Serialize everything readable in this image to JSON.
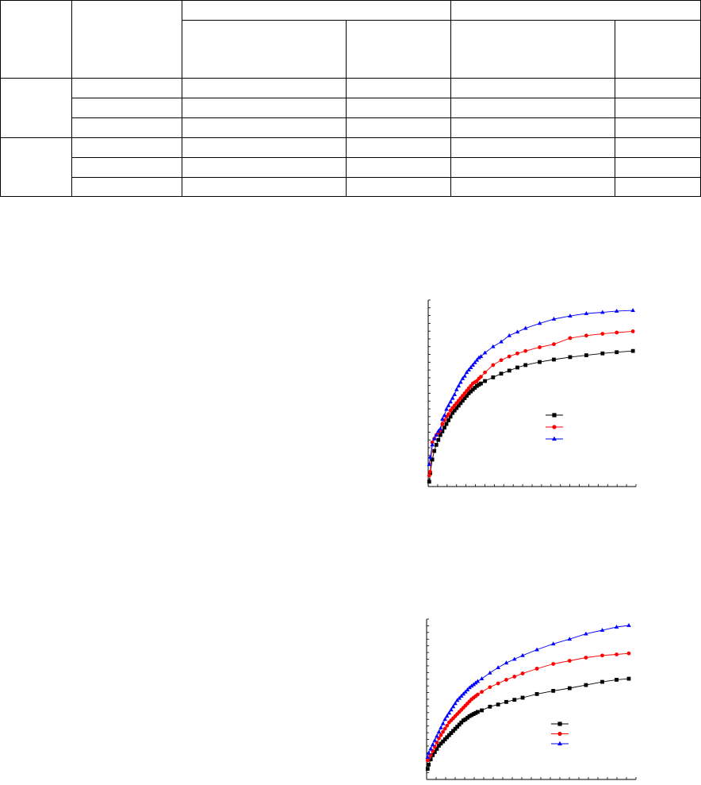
{
  "table": {
    "rows_shown": 8,
    "colors": {
      "border": "#000000",
      "background": "#ffffff"
    }
  },
  "chart_data": [
    {
      "type": "line",
      "title": "",
      "xlabel": "",
      "ylabel": "",
      "x_ticks": 22,
      "y_ticks": 24,
      "grid": false,
      "legend_position": "right-middle",
      "series": [
        {
          "color": "#000000",
          "marker": "square",
          "points": [
            [
              0.1,
              0.4
            ],
            [
              0.2,
              1.1
            ],
            [
              0.4,
              2.2
            ],
            [
              0.6,
              2.9
            ],
            [
              0.8,
              3.4
            ],
            [
              1.0,
              3.8
            ],
            [
              1.2,
              4.2
            ],
            [
              1.4,
              4.5
            ],
            [
              1.6,
              4.8
            ],
            [
              1.8,
              5.1
            ],
            [
              2.0,
              5.4
            ],
            [
              2.2,
              5.7
            ],
            [
              2.4,
              6.0
            ],
            [
              2.6,
              6.2
            ],
            [
              2.8,
              6.4
            ],
            [
              3.0,
              6.6
            ],
            [
              3.2,
              6.8
            ],
            [
              3.4,
              7.0
            ],
            [
              3.6,
              7.2
            ],
            [
              3.8,
              7.4
            ],
            [
              4.0,
              7.6
            ],
            [
              4.2,
              7.75
            ],
            [
              4.4,
              7.9
            ],
            [
              4.6,
              8.05
            ],
            [
              4.8,
              8.2
            ],
            [
              5.0,
              8.3
            ],
            [
              5.2,
              8.4
            ],
            [
              5.6,
              8.6
            ],
            [
              6.4,
              8.9
            ],
            [
              7.2,
              9.2
            ],
            [
              8.0,
              9.45
            ],
            [
              8.8,
              9.7
            ],
            [
              9.6,
              9.9
            ],
            [
              11.0,
              10.15
            ],
            [
              12.4,
              10.35
            ],
            [
              14.0,
              10.55
            ],
            [
              15.6,
              10.7
            ],
            [
              17.2,
              10.85
            ],
            [
              18.6,
              10.95
            ],
            [
              20.2,
              11.05
            ]
          ]
        },
        {
          "color": "#ff0000",
          "marker": "circle",
          "points": [
            [
              0.1,
              0.9
            ],
            [
              0.2,
              1.2
            ],
            [
              0.4,
              3.6
            ],
            [
              0.6,
              3.9
            ],
            [
              0.8,
              4.2
            ],
            [
              1.0,
              4.4
            ],
            [
              1.2,
              4.6
            ],
            [
              1.4,
              5.1
            ],
            [
              1.6,
              5.4
            ],
            [
              1.8,
              5.7
            ],
            [
              2.0,
              5.9
            ],
            [
              2.2,
              6.2
            ],
            [
              2.4,
              6.4
            ],
            [
              2.6,
              6.6
            ],
            [
              2.8,
              6.8
            ],
            [
              3.0,
              7.0
            ],
            [
              3.2,
              7.2
            ],
            [
              3.4,
              7.4
            ],
            [
              3.6,
              7.6
            ],
            [
              3.8,
              7.8
            ],
            [
              4.0,
              8.0
            ],
            [
              4.2,
              8.2
            ],
            [
              4.4,
              8.4
            ],
            [
              4.6,
              8.5
            ],
            [
              4.8,
              8.6
            ],
            [
              5.0,
              8.8
            ],
            [
              5.2,
              8.95
            ],
            [
              5.6,
              9.3
            ],
            [
              6.4,
              9.9
            ],
            [
              7.2,
              10.3
            ],
            [
              8.0,
              10.6
            ],
            [
              8.8,
              10.85
            ],
            [
              9.6,
              11.05
            ],
            [
              11.0,
              11.35
            ],
            [
              12.4,
              11.6
            ],
            [
              14.0,
              12.1
            ],
            [
              15.6,
              12.3
            ],
            [
              17.2,
              12.45
            ],
            [
              18.6,
              12.55
            ],
            [
              20.2,
              12.65
            ]
          ]
        },
        {
          "color": "#0000ff",
          "marker": "triangle",
          "points": [
            [
              0.1,
              1.8
            ],
            [
              0.2,
              2.4
            ],
            [
              0.4,
              3.4
            ],
            [
              0.6,
              3.9
            ],
            [
              0.8,
              4.2
            ],
            [
              1.0,
              4.5
            ],
            [
              1.2,
              4.7
            ],
            [
              1.4,
              5.5
            ],
            [
              1.6,
              5.8
            ],
            [
              1.8,
              6.3
            ],
            [
              2.0,
              6.6
            ],
            [
              2.2,
              6.9
            ],
            [
              2.4,
              7.2
            ],
            [
              2.6,
              7.5
            ],
            [
              2.8,
              7.9
            ],
            [
              3.0,
              8.2
            ],
            [
              3.2,
              8.5
            ],
            [
              3.4,
              8.8
            ],
            [
              3.6,
              9.0
            ],
            [
              3.8,
              9.3
            ],
            [
              4.0,
              9.5
            ],
            [
              4.2,
              9.7
            ],
            [
              4.4,
              9.9
            ],
            [
              4.6,
              10.1
            ],
            [
              4.8,
              10.3
            ],
            [
              5.0,
              10.5
            ],
            [
              5.2,
              10.6
            ],
            [
              5.6,
              10.9
            ],
            [
              6.4,
              11.4
            ],
            [
              7.2,
              11.8
            ],
            [
              8.0,
              12.3
            ],
            [
              8.8,
              12.6
            ],
            [
              9.6,
              12.9
            ],
            [
              11.0,
              13.3
            ],
            [
              12.4,
              13.65
            ],
            [
              14.0,
              13.9
            ],
            [
              15.6,
              14.1
            ],
            [
              17.2,
              14.2
            ],
            [
              18.6,
              14.3
            ],
            [
              20.2,
              14.35
            ]
          ]
        }
      ],
      "xlim": [
        0,
        20.5
      ],
      "ylim": [
        0,
        15.2
      ]
    },
    {
      "type": "line",
      "title": "",
      "xlabel": "",
      "ylabel": "",
      "x_ticks": 22,
      "y_ticks": 24,
      "grid": false,
      "legend_position": "right-middle",
      "series": [
        {
          "color": "#000000",
          "marker": "square",
          "points": [
            [
              0.1,
              1.0
            ],
            [
              0.2,
              1.4
            ],
            [
              0.4,
              1.9
            ],
            [
              0.6,
              2.3
            ],
            [
              0.8,
              2.6
            ],
            [
              1.0,
              2.9
            ],
            [
              1.2,
              3.2
            ],
            [
              1.4,
              3.4
            ],
            [
              1.6,
              3.6
            ],
            [
              1.8,
              3.8
            ],
            [
              2.0,
              4.0
            ],
            [
              2.2,
              4.2
            ],
            [
              2.4,
              4.4
            ],
            [
              2.6,
              4.6
            ],
            [
              2.8,
              4.8
            ],
            [
              3.0,
              5.0
            ],
            [
              3.2,
              5.2
            ],
            [
              3.4,
              5.4
            ],
            [
              3.6,
              5.6
            ],
            [
              3.8,
              5.7
            ],
            [
              4.0,
              5.85
            ],
            [
              4.2,
              6.0
            ],
            [
              4.4,
              6.1
            ],
            [
              4.6,
              6.2
            ],
            [
              4.8,
              6.3
            ],
            [
              5.0,
              6.4
            ],
            [
              5.4,
              6.55
            ],
            [
              6.2,
              6.9
            ],
            [
              7.0,
              7.1
            ],
            [
              7.8,
              7.35
            ],
            [
              8.6,
              7.55
            ],
            [
              9.4,
              7.75
            ],
            [
              10.8,
              8.1
            ],
            [
              12.4,
              8.4
            ],
            [
              14.0,
              8.65
            ],
            [
              15.6,
              8.95
            ],
            [
              17.2,
              9.25
            ],
            [
              18.6,
              9.45
            ],
            [
              19.8,
              9.55
            ]
          ]
        },
        {
          "color": "#ff0000",
          "marker": "circle",
          "points": [
            [
              0.1,
              1.8
            ],
            [
              0.2,
              2.0
            ],
            [
              0.4,
              2.3
            ],
            [
              0.6,
              2.7
            ],
            [
              0.8,
              3.1
            ],
            [
              1.0,
              3.5
            ],
            [
              1.2,
              3.9
            ],
            [
              1.4,
              4.2
            ],
            [
              1.6,
              4.5
            ],
            [
              1.8,
              4.8
            ],
            [
              2.0,
              5.1
            ],
            [
              2.2,
              5.4
            ],
            [
              2.4,
              5.6
            ],
            [
              2.6,
              5.8
            ],
            [
              2.8,
              6.0
            ],
            [
              3.0,
              6.2
            ],
            [
              3.2,
              6.4
            ],
            [
              3.4,
              6.6
            ],
            [
              3.6,
              6.8
            ],
            [
              3.8,
              7.0
            ],
            [
              4.0,
              7.2
            ],
            [
              4.2,
              7.4
            ],
            [
              4.4,
              7.6
            ],
            [
              4.6,
              7.75
            ],
            [
              4.8,
              7.9
            ],
            [
              5.0,
              8.05
            ],
            [
              5.4,
              8.3
            ],
            [
              6.2,
              8.75
            ],
            [
              7.0,
              9.1
            ],
            [
              7.8,
              9.45
            ],
            [
              8.6,
              9.75
            ],
            [
              9.4,
              10.05
            ],
            [
              10.8,
              10.5
            ],
            [
              12.4,
              10.95
            ],
            [
              14.0,
              11.25
            ],
            [
              15.6,
              11.55
            ],
            [
              17.2,
              11.75
            ],
            [
              18.6,
              11.85
            ],
            [
              19.8,
              11.95
            ]
          ]
        },
        {
          "color": "#0000ff",
          "marker": "triangle",
          "points": [
            [
              0.1,
              2.1
            ],
            [
              0.2,
              2.5
            ],
            [
              0.4,
              2.9
            ],
            [
              0.6,
              3.3
            ],
            [
              0.8,
              3.7
            ],
            [
              1.0,
              4.1
            ],
            [
              1.2,
              4.5
            ],
            [
              1.4,
              4.9
            ],
            [
              1.6,
              5.3
            ],
            [
              1.8,
              5.7
            ],
            [
              2.0,
              6.0
            ],
            [
              2.2,
              6.3
            ],
            [
              2.4,
              6.6
            ],
            [
              2.6,
              6.9
            ],
            [
              2.8,
              7.2
            ],
            [
              3.0,
              7.5
            ],
            [
              3.2,
              7.7
            ],
            [
              3.4,
              7.9
            ],
            [
              3.6,
              8.1
            ],
            [
              3.8,
              8.3
            ],
            [
              4.0,
              8.5
            ],
            [
              4.2,
              8.7
            ],
            [
              4.4,
              8.85
            ],
            [
              4.6,
              9.0
            ],
            [
              4.8,
              9.15
            ],
            [
              5.0,
              9.3
            ],
            [
              5.4,
              9.55
            ],
            [
              6.2,
              10.1
            ],
            [
              7.0,
              10.6
            ],
            [
              7.8,
              11.05
            ],
            [
              8.6,
              11.4
            ],
            [
              9.4,
              11.75
            ],
            [
              10.8,
              12.3
            ],
            [
              12.4,
              12.85
            ],
            [
              14.0,
              13.3
            ],
            [
              15.6,
              13.8
            ],
            [
              17.2,
              14.15
            ],
            [
              18.6,
              14.45
            ],
            [
              19.8,
              14.6
            ]
          ]
        }
      ],
      "xlim": [
        0,
        20.5
      ],
      "ylim": [
        0,
        15.2
      ]
    }
  ]
}
